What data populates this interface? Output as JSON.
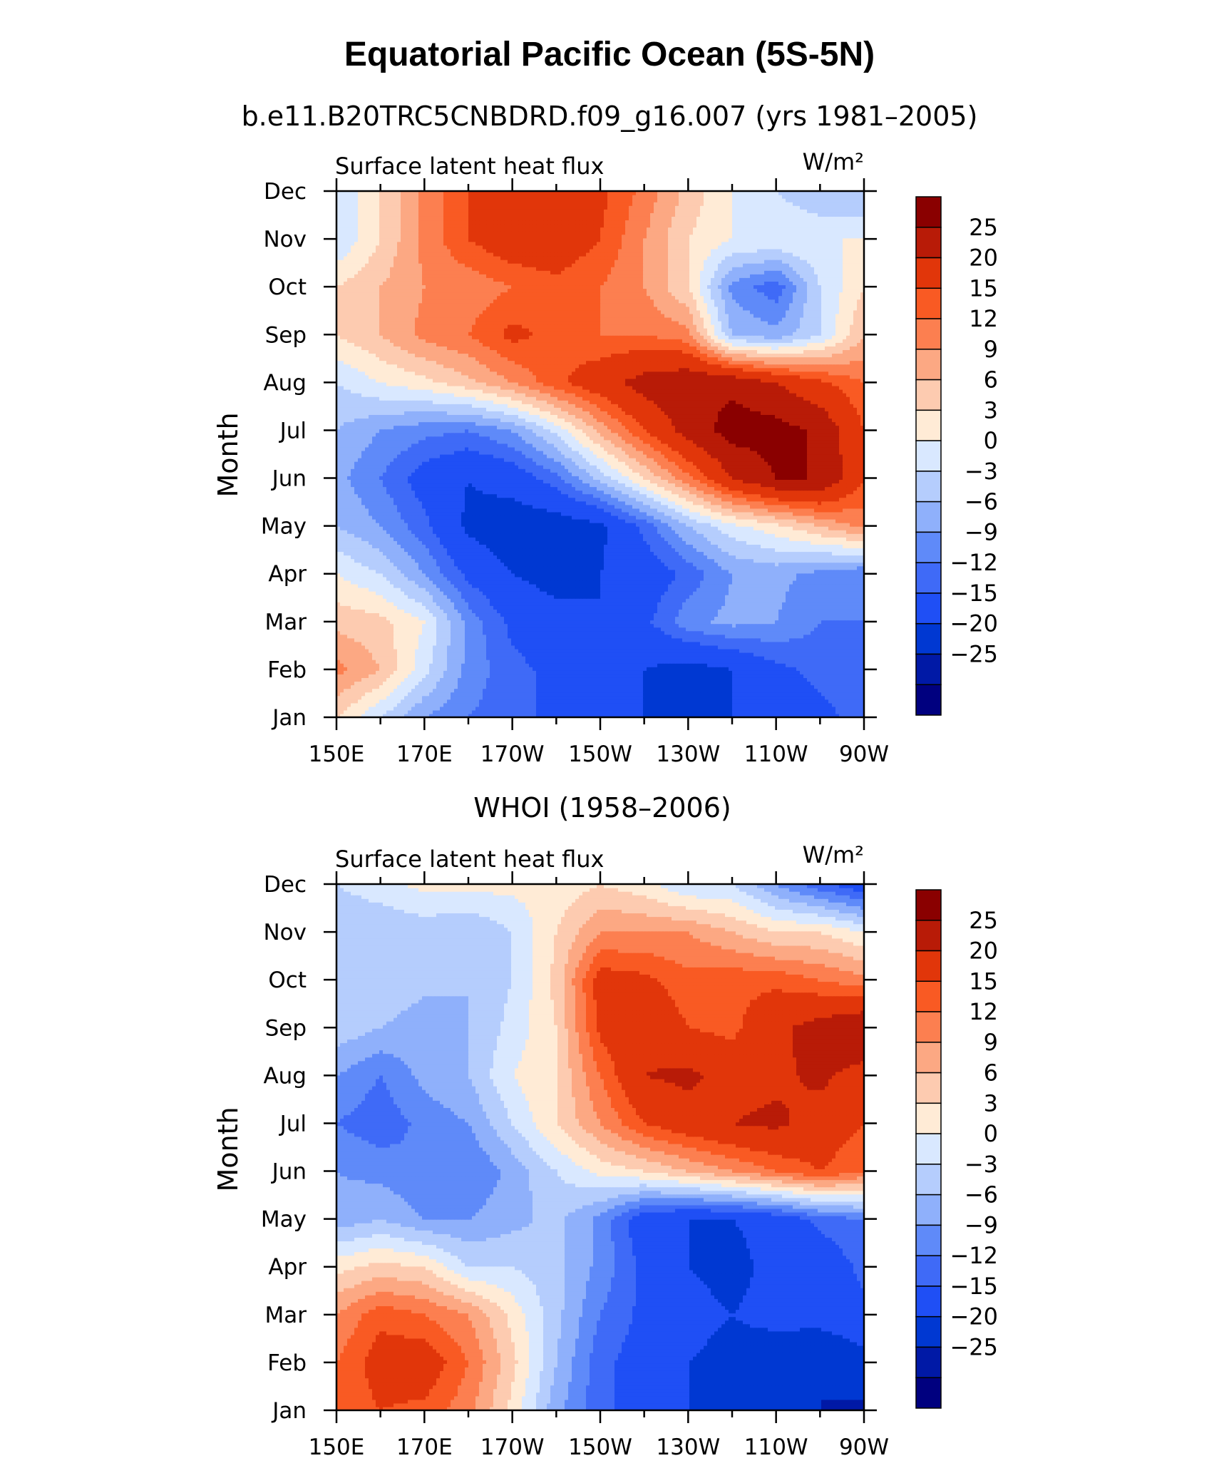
{
  "title": "Equatorial Pacific Ocean (5S-5N)",
  "colors": [
    "#00007f",
    "#0019a6",
    "#0038d2",
    "#1f4ff5",
    "#3f6af7",
    "#5f8af9",
    "#8fb0fb",
    "#b5cdfd",
    "#d9e8ff",
    "#ffebd6",
    "#fdcbb0",
    "#fca883",
    "#fc7f50",
    "#f95a23",
    "#e1360a",
    "#b81b07",
    "#8a0000"
  ],
  "chart_data": [
    {
      "type": "heatmap",
      "subtitle": "b.e11.B20TRC5CNBDRD.f09_g16.007 (yrs 1981–2005)",
      "left_label": "Surface latent heat flux",
      "units": "W/m²",
      "ylabel": "Month",
      "xlabel": "",
      "x_tick_labels": [
        "150E",
        "170E",
        "170W",
        "150W",
        "130W",
        "110W",
        "90W"
      ],
      "y_tick_labels": [
        "Jan",
        "Feb",
        "Mar",
        "Apr",
        "May",
        "Jun",
        "Jul",
        "Aug",
        "Sep",
        "Oct",
        "Nov",
        "Dec"
      ],
      "x_lon_range_deg_east": [
        150,
        270
      ],
      "y_range_months": [
        1,
        12
      ],
      "x": [
        150,
        160,
        170,
        180,
        190,
        200,
        210,
        220,
        230,
        240,
        250,
        260,
        270
      ],
      "y": [
        "Jan",
        "Feb",
        "Mar",
        "Apr",
        "May",
        "Jun",
        "Jul",
        "Aug",
        "Sep",
        "Oct",
        "Nov",
        "Dec"
      ],
      "z": [
        [
          3,
          -3,
          -9,
          -12,
          -14,
          -16,
          -18,
          -20,
          -20,
          -20,
          -18,
          -16,
          -14
        ],
        [
          10,
          6,
          -2,
          -10,
          -14,
          -16,
          -18,
          -20,
          -22,
          -20,
          -16,
          -14,
          -12
        ],
        [
          5,
          4,
          0,
          -10,
          -16,
          -18,
          -20,
          -16,
          -10,
          -8,
          -9,
          -12,
          -12
        ],
        [
          0,
          -3,
          -9,
          -16,
          -20,
          -22,
          -20,
          -18,
          -14,
          -9,
          -8,
          -10,
          -12
        ],
        [
          -6,
          -9,
          -14,
          -21,
          -23,
          -23,
          -21,
          -14,
          -6,
          -1,
          2,
          6,
          10
        ],
        [
          -8,
          -12,
          -17,
          -20,
          -18,
          -13,
          -5,
          3,
          11,
          20,
          25,
          25,
          15
        ],
        [
          -6,
          -9,
          -11,
          -12,
          -9,
          -2,
          7,
          15,
          22,
          27,
          27,
          24,
          15
        ],
        [
          -3,
          0,
          2,
          5,
          9,
          14,
          18,
          22,
          24,
          24,
          20,
          16,
          12
        ],
        [
          3,
          6,
          10,
          12,
          16,
          14,
          12,
          12,
          10,
          -6,
          -8,
          -3,
          6
        ],
        [
          3,
          6,
          9,
          10,
          12,
          14,
          12,
          9,
          3,
          -10,
          -14,
          -3,
          3
        ],
        [
          -3,
          3,
          10,
          15,
          18,
          18,
          15,
          9,
          3,
          0,
          0,
          0,
          0
        ],
        [
          -3,
          3,
          10,
          15,
          18,
          20,
          16,
          11,
          5,
          0,
          -3,
          -6,
          -6
        ]
      ],
      "contour_levels": [
        -25,
        -20,
        -15,
        -12,
        -9,
        -6,
        -3,
        0,
        3,
        6,
        9,
        12,
        15,
        20,
        25
      ],
      "colorbar_labels": [
        "25",
        "20",
        "15",
        "12",
        "9",
        "6",
        "3",
        "0",
        "−3",
        "−6",
        "−9",
        "−12",
        "−15",
        "−20",
        "−25"
      ]
    },
    {
      "type": "heatmap",
      "subtitle": "WHOI (1958–2006)",
      "left_label": "Surface latent heat flux",
      "units": "W/m²",
      "ylabel": "Month",
      "xlabel": "",
      "x_tick_labels": [
        "150E",
        "170E",
        "170W",
        "150W",
        "130W",
        "110W",
        "90W"
      ],
      "y_tick_labels": [
        "Jan",
        "Feb",
        "Mar",
        "Apr",
        "May",
        "Jun",
        "Jul",
        "Aug",
        "Sep",
        "Oct",
        "Nov",
        "Dec"
      ],
      "x_lon_range_deg_east": [
        150,
        270
      ],
      "y_range_months": [
        1,
        12
      ],
      "x": [
        150,
        160,
        170,
        180,
        190,
        200,
        210,
        220,
        230,
        240,
        250,
        260,
        270
      ],
      "y": [
        "Jan",
        "Feb",
        "Mar",
        "Apr",
        "May",
        "Jun",
        "Jul",
        "Aug",
        "Sep",
        "Oct",
        "Nov",
        "Dec"
      ],
      "z": [
        [
          12,
          15,
          14,
          10,
          2,
          -8,
          -14,
          -17,
          -20,
          -22,
          -23,
          -25,
          -26
        ],
        [
          12,
          17,
          18,
          12,
          4,
          -6,
          -14,
          -17,
          -20,
          -22,
          -24,
          -25,
          -22
        ],
        [
          9,
          14,
          12,
          9,
          2,
          -5,
          -12,
          -16,
          -18,
          -20,
          -18,
          -18,
          -16
        ],
        [
          2,
          4,
          3,
          -3,
          -3,
          -5,
          -10,
          -16,
          -20,
          -22,
          -18,
          -18,
          -14
        ],
        [
          -8,
          -6,
          -9,
          -9,
          -7,
          -5,
          -10,
          -18,
          -20,
          -20,
          -18,
          -14,
          -12
        ],
        [
          -9,
          -10,
          -12,
          -12,
          -8,
          -3,
          1,
          3,
          6,
          9,
          12,
          15,
          12
        ],
        [
          -12,
          -14,
          -11,
          -9,
          -3,
          3,
          9,
          15,
          18,
          20,
          21,
          18,
          15
        ],
        [
          -9,
          -12,
          -8,
          -6,
          0,
          3,
          12,
          20,
          21,
          18,
          19,
          21,
          18
        ],
        [
          -4,
          -6,
          -8,
          -6,
          -2,
          3,
          16,
          19,
          15,
          14,
          19,
          22,
          25
        ],
        [
          -6,
          -3,
          -5,
          -6,
          -3,
          4,
          17,
          16,
          13,
          14,
          14,
          12,
          10
        ],
        [
          -6,
          -6,
          -5,
          -6,
          -3,
          3,
          9,
          9,
          9,
          6,
          3,
          3,
          0
        ],
        [
          -3,
          -1,
          1,
          1,
          1,
          1,
          3,
          1,
          -3,
          -3,
          -9,
          -14,
          -18
        ]
      ],
      "contour_levels": [
        -25,
        -20,
        -15,
        -12,
        -9,
        -6,
        -3,
        0,
        3,
        6,
        9,
        12,
        15,
        20,
        25
      ],
      "colorbar_labels": [
        "25",
        "20",
        "15",
        "12",
        "9",
        "6",
        "3",
        "0",
        "−3",
        "−6",
        "−9",
        "−12",
        "−15",
        "−20",
        "−25"
      ]
    }
  ]
}
